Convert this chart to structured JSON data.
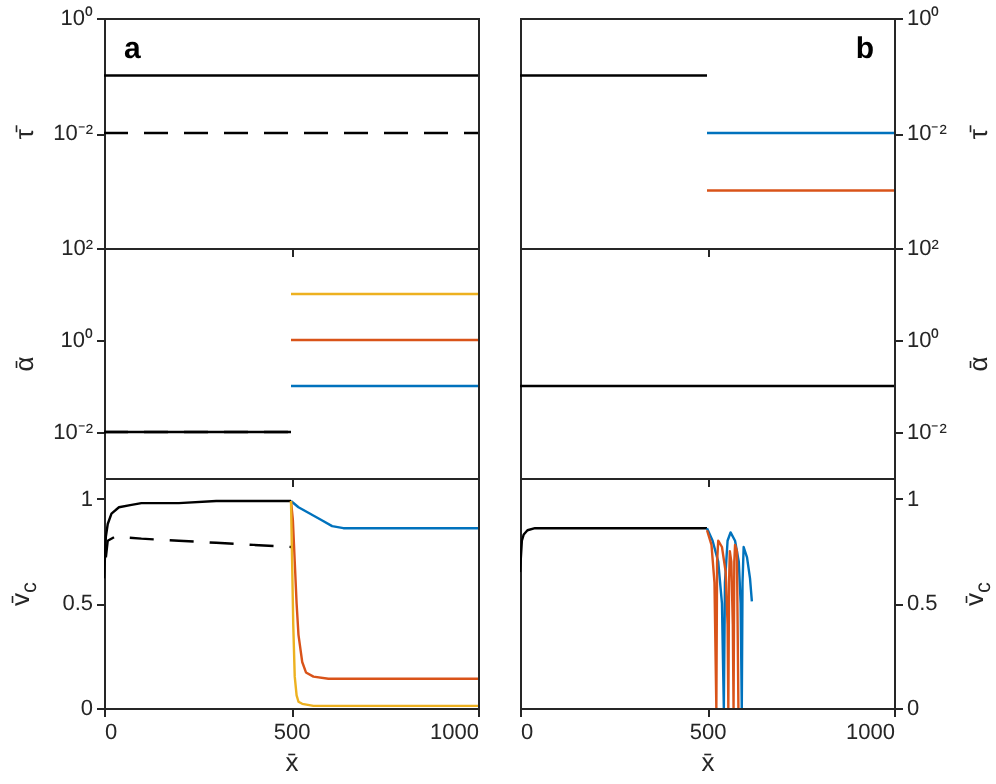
{
  "chart_data": [
    {
      "type": "line",
      "ylabel": "τ̄",
      "annotations": [
        "a"
      ],
      "xlim": [
        0,
        1000
      ],
      "xticks": [
        {
          "value": 0,
          "label": null
        },
        {
          "value": 500,
          "label": null
        },
        {
          "value": 1000,
          "label": null
        }
      ],
      "ylim": [
        0.0001,
        1
      ],
      "yticks": [
        {
          "value": 0.0001,
          "label": null
        },
        {
          "value": 0.01,
          "label": "10⁻²"
        },
        {
          "value": 1,
          "label": "10⁰"
        }
      ],
      "log": true,
      "tick_labels": "y",
      "grid": false,
      "series": [
        {
          "color": "#000000",
          "line_style": "solid",
          "x": [
            0,
            1000
          ],
          "values": [
            0.1,
            0.1
          ]
        },
        {
          "color": "#000000",
          "line_style": "dashed",
          "x": [
            0,
            1000
          ],
          "values": [
            0.01,
            0.01
          ]
        }
      ]
    },
    {
      "type": "line",
      "ylabel": "τ̄",
      "annotations": [
        "b"
      ],
      "xlim": [
        0,
        1000
      ],
      "xticks": [
        {
          "value": 0,
          "label": null
        },
        {
          "value": 500,
          "label": null
        },
        {
          "value": 1000,
          "label": null
        }
      ],
      "ylim": [
        0.0001,
        1
      ],
      "yticks": [
        {
          "value": 0.0001,
          "label": null
        },
        {
          "value": 0.01,
          "label": "10⁻²"
        },
        {
          "value": 1,
          "label": "10⁰"
        }
      ],
      "log": true,
      "tick_labels": "y",
      "grid": false,
      "series": [
        {
          "color": "#000000",
          "x": [
            0,
            500
          ],
          "values": [
            0.1,
            0.1
          ]
        },
        {
          "color": "#0072bd",
          "x": [
            500,
            1000
          ],
          "values": [
            0.01,
            0.01
          ]
        },
        {
          "color": "#d95319",
          "x": [
            500,
            1000
          ],
          "values": [
            0.001,
            0.001
          ]
        }
      ]
    },
    {
      "type": "line",
      "ylabel": "ᾱ",
      "xlim": [
        0,
        1000
      ],
      "xticks": [
        {
          "value": 0,
          "label": null
        },
        {
          "value": 500,
          "label": null
        },
        {
          "value": 1000,
          "label": null
        }
      ],
      "ylim": [
        0.001,
        100
      ],
      "yticks": [
        {
          "value": 0.01,
          "label": "10⁻²"
        },
        {
          "value": 1,
          "label": "10⁰"
        },
        {
          "value": 100,
          "label": "10²"
        }
      ],
      "log": true,
      "tick_labels": "y",
      "grid": false,
      "series": [
        {
          "color": "#000000",
          "line_style": "solid",
          "x": [
            0,
            500
          ],
          "values": [
            0.01,
            0.01
          ]
        },
        {
          "color": "#000000",
          "line_style": "dashed",
          "x": [
            0,
            500
          ],
          "values": [
            0.01,
            0.01
          ]
        },
        {
          "color": "#edb120",
          "x": [
            500,
            1000
          ],
          "values": [
            10,
            10
          ]
        },
        {
          "color": "#d95319",
          "x": [
            500,
            1000
          ],
          "values": [
            1,
            1
          ]
        },
        {
          "color": "#0072bd",
          "x": [
            500,
            1000
          ],
          "values": [
            0.1,
            0.1
          ]
        }
      ]
    },
    {
      "type": "line",
      "ylabel": "ᾱ",
      "xlim": [
        0,
        1000
      ],
      "xticks": [
        {
          "value": 0,
          "label": null
        },
        {
          "value": 500,
          "label": null
        },
        {
          "value": 1000,
          "label": null
        }
      ],
      "ylim": [
        0.001,
        100
      ],
      "yticks": [
        {
          "value": 0.01,
          "label": "10⁻²"
        },
        {
          "value": 1,
          "label": "10⁰"
        },
        {
          "value": 100,
          "label": "10²"
        }
      ],
      "log": true,
      "tick_labels": "y",
      "grid": false,
      "series": [
        {
          "color": "#000000",
          "x": [
            0,
            1000
          ],
          "values": [
            0.1,
            0.1
          ]
        }
      ]
    },
    {
      "type": "line",
      "ylabel": "v̄$_{c}$",
      "xlabel": "x̄",
      "xlim": [
        0,
        1000
      ],
      "xticks": [
        0,
        500,
        1000
      ],
      "ylim": [
        0,
        1.1
      ],
      "yticks": [
        0,
        0.5,
        1
      ],
      "grid": false,
      "series": [
        {
          "color": "#000000",
          "line_style": "solid",
          "x": [
            0,
            5,
            10,
            20,
            40,
            70,
            100,
            200,
            300,
            400,
            500
          ],
          "values": [
            0.62,
            0.82,
            0.88,
            0.93,
            0.96,
            0.97,
            0.98,
            0.98,
            0.99,
            0.99,
            0.99
          ]
        },
        {
          "color": "#000000",
          "line_style": "dashed",
          "x": [
            5,
            10,
            30,
            100,
            200,
            300,
            400,
            500
          ],
          "values": [
            0.72,
            0.8,
            0.82,
            0.81,
            0.8,
            0.79,
            0.78,
            0.77
          ]
        },
        {
          "color": "#0072bd",
          "x": [
            500,
            520,
            550,
            580,
            610,
            640,
            700,
            800,
            1000
          ],
          "values": [
            0.99,
            0.96,
            0.93,
            0.9,
            0.87,
            0.86,
            0.86,
            0.86,
            0.86
          ]
        },
        {
          "color": "#d95319",
          "x": [
            500,
            505,
            510,
            515,
            520,
            530,
            540,
            560,
            600,
            700,
            1000
          ],
          "values": [
            0.99,
            0.9,
            0.7,
            0.5,
            0.35,
            0.22,
            0.17,
            0.15,
            0.14,
            0.14,
            0.14
          ]
        },
        {
          "color": "#edb120",
          "x": [
            500,
            503,
            506,
            510,
            515,
            520,
            530,
            560,
            1000
          ],
          "values": [
            0.99,
            0.7,
            0.4,
            0.15,
            0.06,
            0.03,
            0.02,
            0.01,
            0.01
          ]
        }
      ]
    },
    {
      "type": "line",
      "ylabel": "v̄$_{c}$",
      "xlabel": "x̄",
      "xlim": [
        0,
        1000
      ],
      "xticks": [
        0,
        500,
        1000
      ],
      "ylim": [
        0,
        1.1
      ],
      "yticks": [
        0,
        0.5,
        1
      ],
      "grid": false,
      "series": [
        {
          "color": "#000000",
          "x": [
            0,
            5,
            10,
            20,
            40,
            100,
            300,
            500
          ],
          "values": [
            0.65,
            0.8,
            0.83,
            0.85,
            0.86,
            0.86,
            0.86,
            0.86
          ]
        },
        {
          "color": "#0072bd",
          "x": [
            500,
            515,
            530,
            540,
            545,
            548,
            555,
            563,
            575,
            585,
            590,
            593,
            595,
            598,
            607,
            615,
            620
          ],
          "values": [
            0.86,
            0.8,
            0.7,
            0.5,
            0,
            0.6,
            0.8,
            0.84,
            0.8,
            0.7,
            0.5,
            0,
            0.6,
            0.77,
            0.72,
            0.62,
            0.51
          ]
        },
        {
          "color": "#d95319",
          "x": [
            500,
            512,
            520,
            525,
            527,
            530,
            540,
            550,
            555,
            557,
            559,
            561,
            565,
            569,
            571,
            573,
            575,
            580,
            584
          ],
          "values": [
            0.85,
            0.78,
            0.6,
            0,
            0.7,
            0.8,
            0.77,
            0.65,
            0.4,
            0,
            0.6,
            0.75,
            0.7,
            0.4,
            0,
            0.7,
            0.78,
            0.75,
            0
          ]
        }
      ]
    }
  ]
}
